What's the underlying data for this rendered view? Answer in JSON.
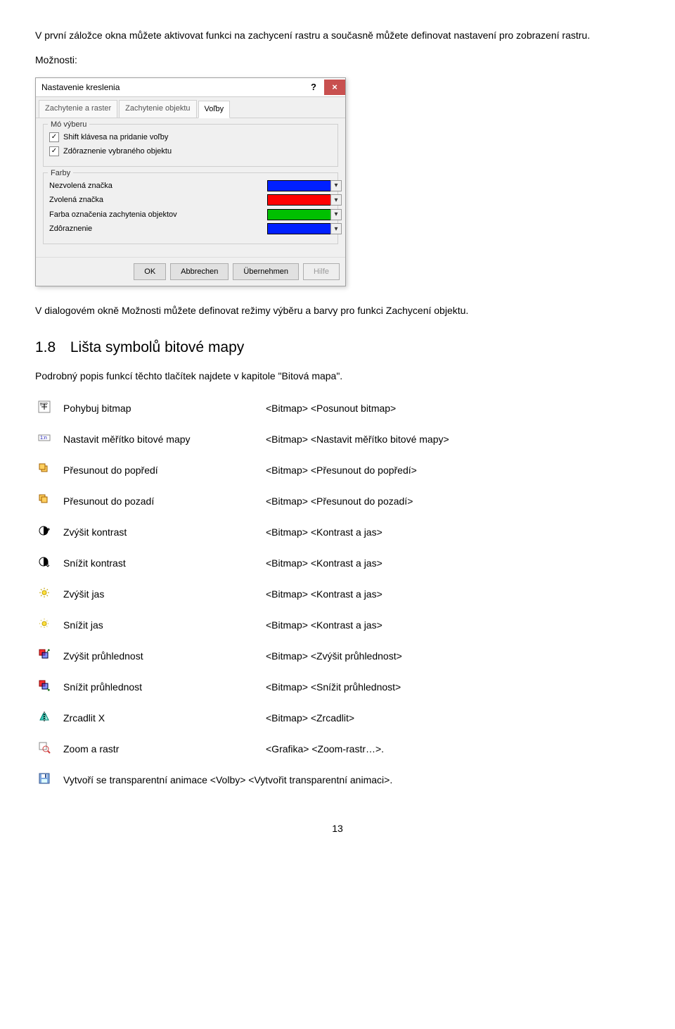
{
  "intro": {
    "p1": "V první záložce okna můžete aktivovat funkci na zachycení rastru a současně můžete definovat nastavení pro zobrazení rastru.",
    "p2": "Možnosti:",
    "p3": "V dialogovém okně Možnosti můžete definovat režimy výběru a barvy pro funkci Zachycení objektu."
  },
  "dialog": {
    "title": "Nastavenie kreslenia",
    "tabs": {
      "t1": "Zachytenie a raster",
      "t2": "Zachytenie objektu",
      "t3": "Voľby"
    },
    "group1": {
      "title": "Mó výberu",
      "c1": "Shift klávesa na pridanie voľby",
      "c2": "Zdôraznenie vybraného objektu"
    },
    "group2": {
      "title": "Farby",
      "r1": "Nezvolená značka",
      "r2": "Zvolená značka",
      "r3": "Farba označenia zachytenia objektov",
      "r4": "Zdôraznenie",
      "colors": {
        "c1": "#0020ff",
        "c2": "#ff0000",
        "c3": "#00c000",
        "c4": "#0020ff"
      }
    },
    "buttons": {
      "ok": "OK",
      "cancel": "Abbrechen",
      "apply": "Übernehmen",
      "help": "Hilfe"
    }
  },
  "section": {
    "num": "1.8",
    "title": "Lišta symbolů bitové mapy",
    "intro": "Podrobný popis funkcí těchto tlačítek najdete v kapitole \"Bitová mapa\"."
  },
  "rows": [
    {
      "name": "Pohybuj bitmap",
      "menu": "<Bitmap> <Posunout bitmap>"
    },
    {
      "name": "Nastavit měřítko bitové mapy",
      "menu": "<Bitmap> <Nastavit měřítko bitové mapy>"
    },
    {
      "name": "Přesunout do popředí",
      "menu": "<Bitmap> <Přesunout do popředí>"
    },
    {
      "name": "Přesunout do pozadí",
      "menu": "<Bitmap> <Přesunout do pozadí>"
    },
    {
      "name": "Zvýšit kontrast",
      "menu": "<Bitmap> <Kontrast a jas>"
    },
    {
      "name": "Snížit kontrast",
      "menu": "<Bitmap> <Kontrast a jas>"
    },
    {
      "name": "Zvýšit jas",
      "menu": "<Bitmap> <Kontrast a jas>"
    },
    {
      "name": "Snížit jas",
      "menu": "<Bitmap> <Kontrast a jas>"
    },
    {
      "name": "Zvýšit průhlednost",
      "menu": "<Bitmap> <Zvýšit průhlednost>"
    },
    {
      "name": "Snížit průhlednost",
      "menu": "<Bitmap> <Snížit průhlednost>"
    },
    {
      "name": "Zrcadlit X",
      "menu": "<Bitmap> <Zrcadlit>"
    },
    {
      "name": "Zoom a rastr",
      "menu": "<Grafika> <Zoom-rastr…>."
    },
    {
      "name": "",
      "menu": "Vytvoří se transparentní animace <Volby> <Vytvořit transparentní animaci>."
    }
  ],
  "page_number": "13",
  "icon_svg": {
    "bmp_move": "<svg viewBox='0 0 18 18'><rect x='1' y='1' width='16' height='16' fill='#fff' stroke='#888'/><text x='3' y='7' font-size='5' fill='#000'>BMP</text><path d='M9 9l4 0M9 9l0 4M9 9l-4 0M9 9l0 -4' stroke='#000'/></svg>",
    "scale": "<svg viewBox='0 0 18 18'><rect x='1' y='5' width='16' height='8' fill='#fff' stroke='#888'/><text x='3' y='11' font-size='7' fill='#00a'>1:n</text></svg>",
    "front": "<svg viewBox='0 0 18 18'><rect x='5' y='5' width='8' height='8' fill='#ffd060' stroke='#a06000'/><rect x='2' y='2' width='8' height='8' fill='#ffd060' stroke='#a06000'/></svg>",
    "back": "<svg viewBox='0 0 18 18'><rect x='2' y='2' width='8' height='8' fill='#ffd060' stroke='#a06000'/><rect x='5' y='5' width='8' height='8' fill='#ffd060' stroke='#a06000'/></svg>",
    "contrast_up": "<svg viewBox='0 0 18 18'><circle cx='8' cy='9' r='6' fill='#fff' stroke='#000'/><path d='M8 3a6 6 0 0 1 0 12z' fill='#000'/><path d='M15 5l0 4M13 7l4 0' stroke='#000'/></svg>",
    "contrast_dn": "<svg viewBox='0 0 18 18'><circle cx='8' cy='9' r='6' fill='#fff' stroke='#000'/><path d='M8 3a6 6 0 0 1 0 12z' fill='#000'/><path d='M14 9l0 5' stroke='#000'/><path d='M12 14l2 2l2 -2' fill='none' stroke='#000'/></svg>",
    "bright_up": "<svg viewBox='0 0 18 18'><circle cx='9' cy='9' r='3' fill='#ffe040' stroke='#c0a000'/><g stroke='#c0a000'><path d='M9 2v2M9 14v2M2 9h2M14 9h2M4 4l1.5 1.5M12.5 12.5L14 14M4 14l1.5 -1.5M12.5 5.5L14 4'/></g></svg>",
    "bright_dn": "<svg viewBox='0 0 18 18'><circle cx='9' cy='9' r='3' fill='#ffe040' stroke='#c0a000'/><g stroke='#c0a000' stroke-dasharray='1 1'><path d='M9 2v2M9 14v2M2 9h2M14 9h2M4 4l1.5 1.5M12.5 12.5L14 14M4 14l1.5 -1.5M12.5 5.5L14 4'/></g></svg>",
    "trans_up": "<svg viewBox='0 0 18 18'><rect x='2' y='2' width='8' height='8' fill='#ff3030' stroke='#800'/><rect x='6' y='6' width='8' height='8' fill='#3050ff' fill-opacity='0.6' stroke='#003'/><path d='M16 4l0 -2l-2 0M16 2l-3 3' stroke='#060' fill='none'/></svg>",
    "trans_dn": "<svg viewBox='0 0 18 18'><rect x='2' y='2' width='8' height='8' fill='#ff3030' stroke='#800'/><rect x='6' y='6' width='8' height='8' fill='#3050ff' fill-opacity='0.6' stroke='#003'/><path d='M13 13l3 3M16 14l0 2l-2 0' stroke='#060' fill='none'/></svg>",
    "mirror": "<svg viewBox='0 0 18 18'><path d='M3 14L8 4L8 14Z' fill='#40d0c0' stroke='#008070'/><path d='M15 14L10 4L10 14Z' fill='#a0f0e0' stroke='#008070'/><line x1='9' y1='2' x2='9' y2='16' stroke='#000' stroke-dasharray='2 1'/></svg>",
    "zoom": "<svg viewBox='0 0 18 18'><rect x='2' y='2' width='10' height='10' fill='#fff' stroke='#888'/><circle cx='11' cy='11' r='4' fill='none' stroke='#d04040'/><line x1='14' y1='14' x2='17' y2='17' stroke='#d04040' stroke-width='2'/></svg>",
    "save": "<svg viewBox='0 0 18 18'><rect x='2' y='2' width='14' height='14' fill='#7fa8e0' stroke='#3a5a90'/><rect x='5' y='3' width='8' height='5' fill='#fff'/><rect x='5' y='10' width='8' height='5' fill='#dff'/><rect x='10' y='3' width='2' height='5' fill='#3a5a90'/></svg>"
  }
}
